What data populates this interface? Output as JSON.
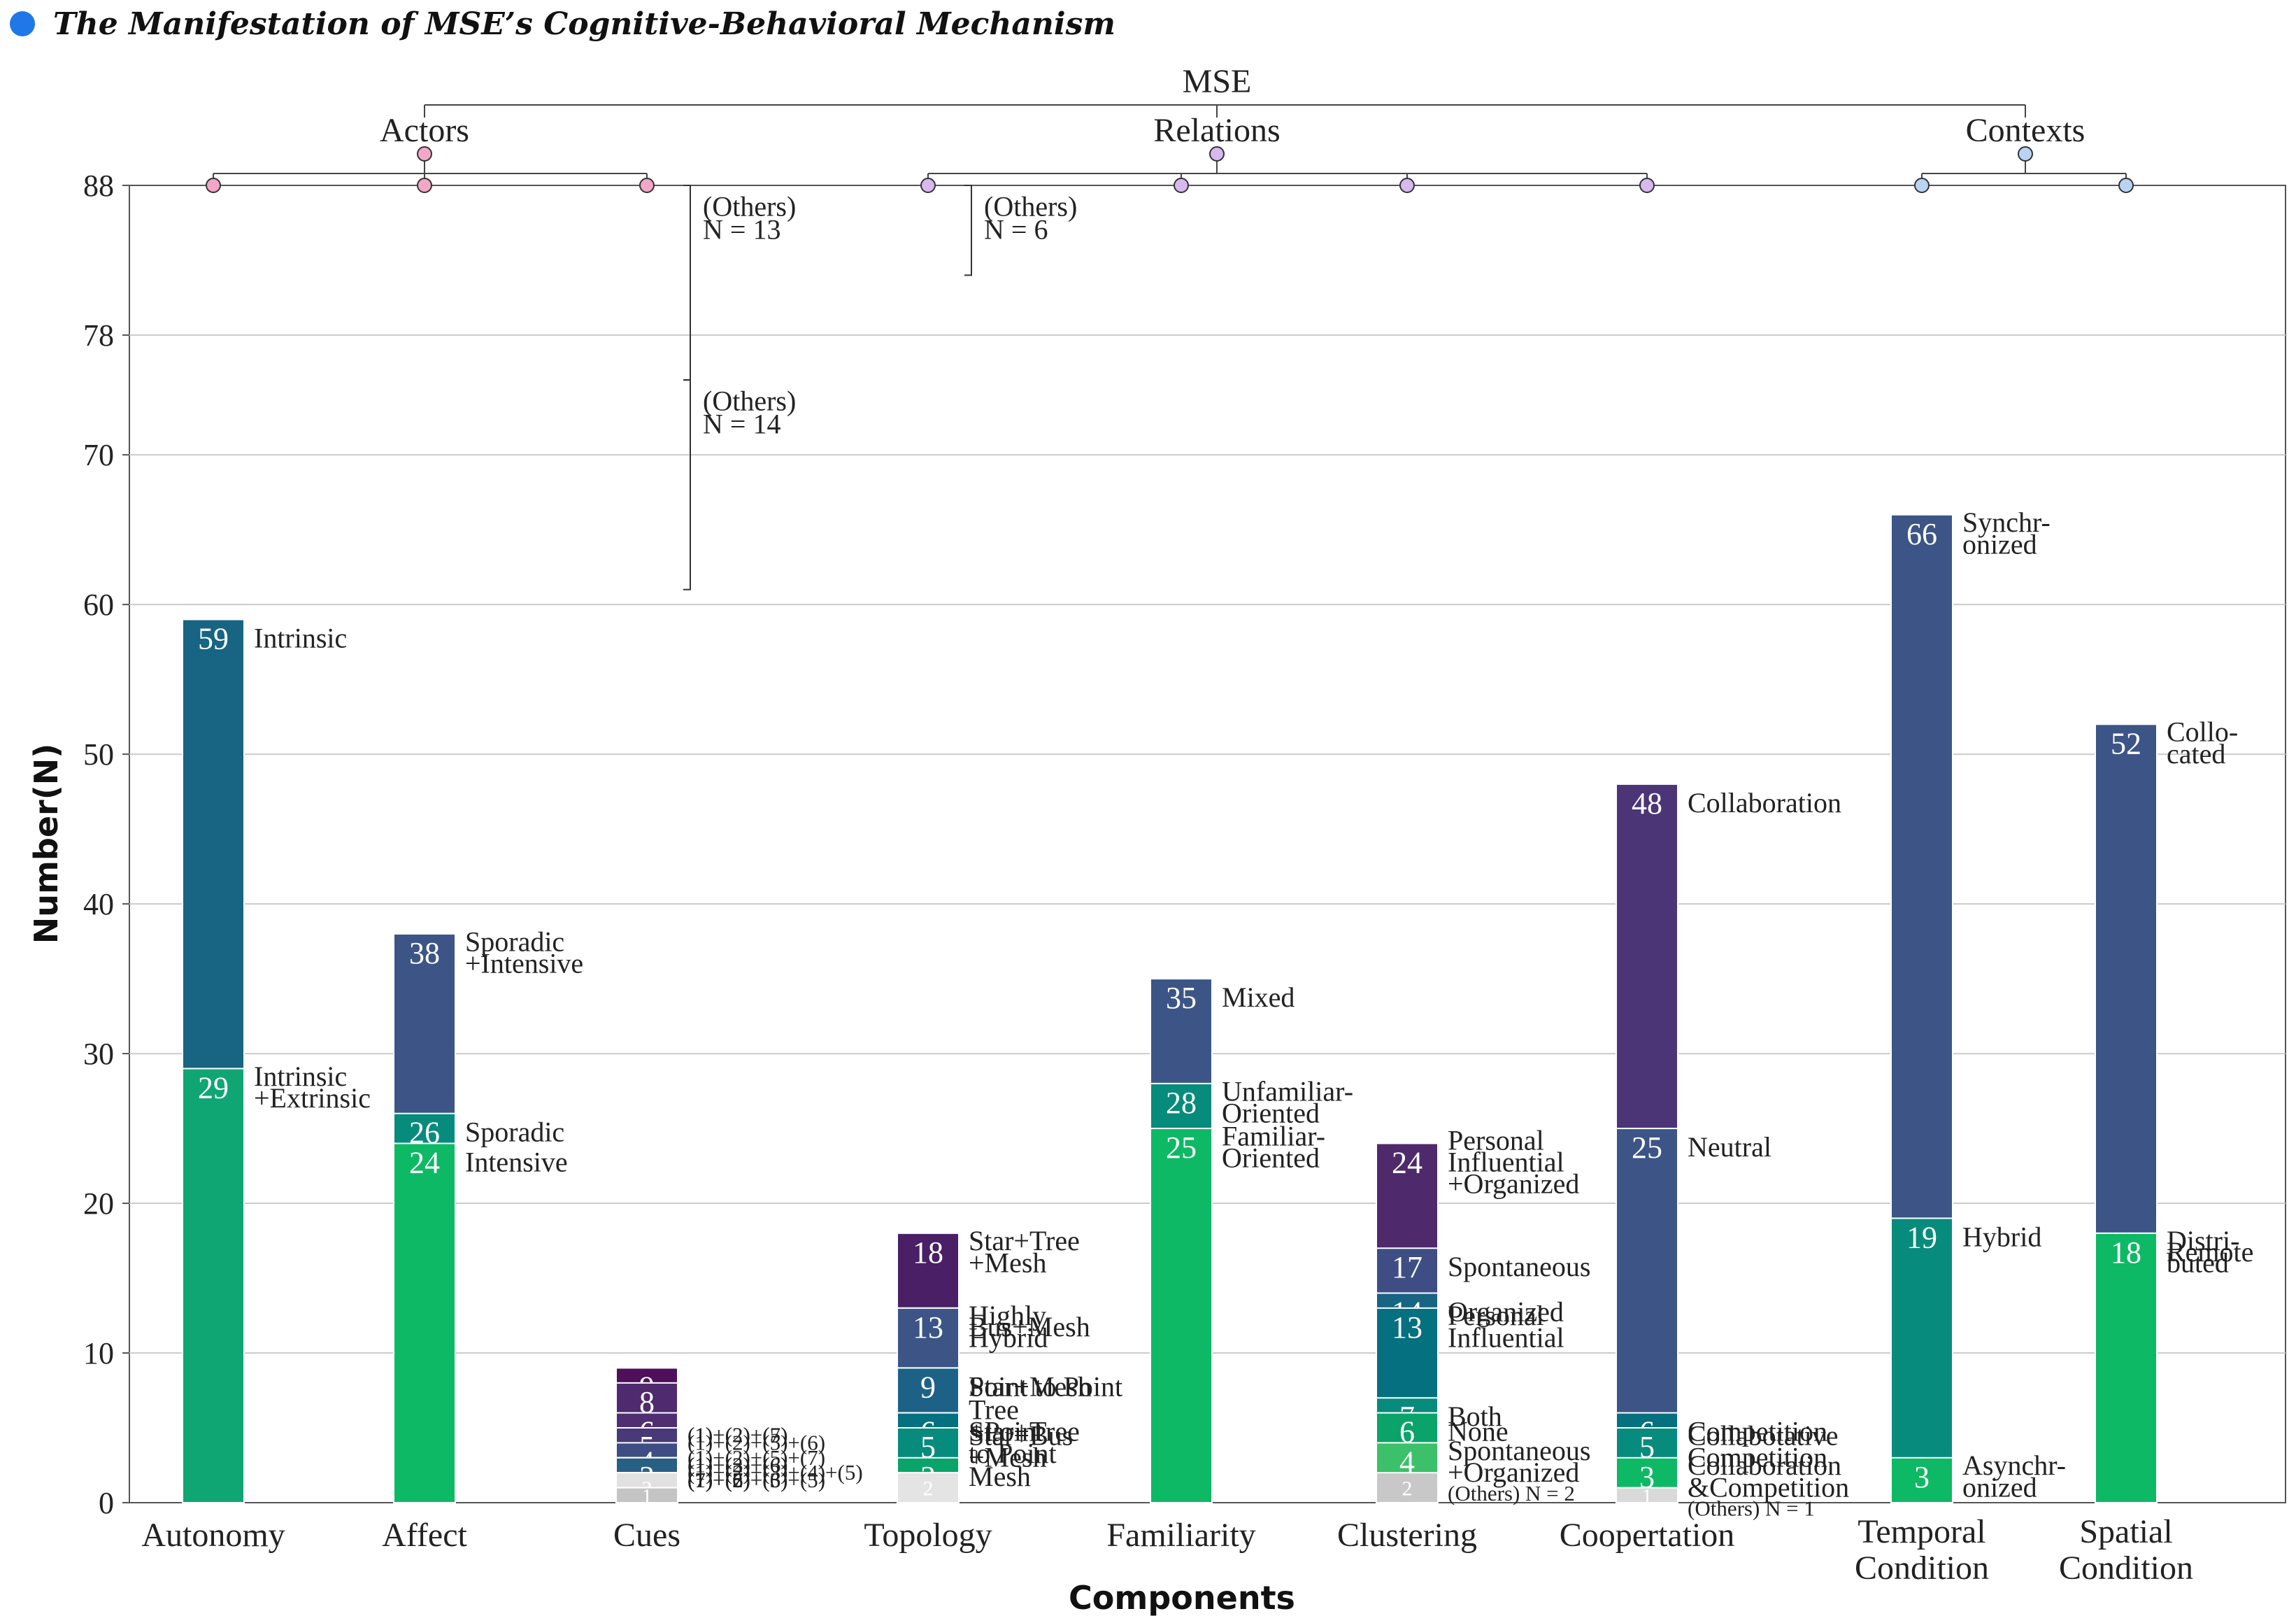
{
  "figure": {
    "title": "The Manifestation of MSE’s Cognitive-Behavioral Mechanism",
    "title_dot_color": "#1f77e8"
  },
  "hierarchy": {
    "root": "MSE",
    "groups": [
      {
        "name": "Actors",
        "dot_color": "#f2a7c6",
        "bars": [
          "Autonomy",
          "Affect",
          "Cues"
        ]
      },
      {
        "name": "Relations",
        "dot_color": "#d7b8ef",
        "bars": [
          "Topology",
          "Familiarity",
          "Clustering",
          "Coopertation"
        ]
      },
      {
        "name": "Contexts",
        "dot_color": "#b9d4f2",
        "bars": [
          "Temporal Condition",
          "Spatial Condition"
        ]
      }
    ]
  },
  "chart_data": {
    "type": "bar",
    "subtype": "stacked",
    "title": "The Manifestation of MSE’s Cognitive-Behavioral Mechanism",
    "xlabel": "Components",
    "ylabel": "Number(N)",
    "ylim": [
      0,
      88
    ],
    "yticks": [
      0,
      10,
      20,
      30,
      40,
      50,
      60,
      70,
      78,
      88
    ],
    "grid": true,
    "categories": [
      "Autonomy",
      "Affect",
      "Cues",
      "Topology",
      "Familiarity",
      "Clustering",
      "Coopertation",
      "Temporal Condition",
      "Spatial Condition"
    ],
    "bars": [
      {
        "category": "Autonomy",
        "segments": [
          {
            "value": 59,
            "label": "Intrinsic",
            "color": "#176483"
          },
          {
            "value": 29,
            "label": "Intrinsic\n+Extrinsic",
            "color": "#0fa673"
          }
        ]
      },
      {
        "category": "Affect",
        "segments": [
          {
            "value": 38,
            "label": "Sporadic\n+Intensive",
            "color": "#3c5586"
          },
          {
            "value": 26,
            "label": "Sporadic",
            "color": "#078b7c"
          },
          {
            "value": 24,
            "label": "Intensive",
            "color": "#0db965"
          }
        ]
      },
      {
        "category": "Cues",
        "segments": [
          {
            "value": 9,
            "label": "(1)+(2)+(5)",
            "color": "#4f0f5a"
          },
          {
            "value": 9,
            "label": "(1)+(2)+(7)",
            "color": "#4f0f5a"
          },
          {
            "value": 8,
            "label": "(1)+(2)+(5)+(6)",
            "color": "#4f2a6f"
          },
          {
            "value": 6,
            "label": "(1)+(2)+(5)+(7)",
            "color": "#4f2f72"
          },
          {
            "value": 5,
            "label": "(1)+(3)+(6)",
            "color": "#483979"
          },
          {
            "value": 5,
            "label": "(1)+(2)+(6)",
            "color": "#483979"
          },
          {
            "value": 4,
            "label": "(1)+(2)+(3)+(4)+(5)",
            "color": "#3e4d84"
          },
          {
            "value": 3,
            "label": "(1)+(5)+(6)",
            "color": "#3c5586"
          },
          {
            "value": 3,
            "label": "(1)+(7)",
            "color": "#285f85"
          },
          {
            "value": 3,
            "label": "(1)+(2)+(3)+(5)",
            "color": "#285f85"
          },
          {
            "value": 3,
            "label": "(1)+(6)",
            "color": "#285f85"
          },
          {
            "value": 3,
            "label": "(7)",
            "color": "#285f85"
          },
          {
            "value": 2,
            "label": "",
            "color": "#e1e1e1"
          },
          {
            "value": 2,
            "label": "",
            "color": "#c4c4c4"
          },
          {
            "value": 2,
            "label": "",
            "color": "#e1e1e1"
          },
          {
            "value": 2,
            "label": "",
            "color": "#c4c4c4"
          },
          {
            "value": 2,
            "label": "",
            "color": "#e1e1e1"
          },
          {
            "value": 2,
            "label": "",
            "color": "#c4c4c4"
          },
          {
            "value": 2,
            "label": "",
            "color": "#e1e1e1"
          },
          {
            "value": 1,
            "label": "",
            "color": "#c4c4c4"
          },
          {
            "value": 1,
            "label": "",
            "color": "#e1e1e1"
          },
          {
            "value": 1,
            "label": "",
            "color": "#c4c4c4"
          },
          {
            "value": 1,
            "label": "",
            "color": "#e1e1e1"
          },
          {
            "value": 1,
            "label": "",
            "color": "#c4c4c4"
          },
          {
            "value": 1,
            "label": "",
            "color": "#e1e1e1"
          },
          {
            "value": 1,
            "label": "",
            "color": "#c4c4c4"
          },
          {
            "value": 1,
            "label": "",
            "color": "#e1e1e1"
          },
          {
            "value": 1,
            "label": "",
            "color": "#c4c4c4"
          },
          {
            "value": 1,
            "label": "",
            "color": "#e1e1e1"
          },
          {
            "value": 1,
            "label": "",
            "color": "#c4c4c4"
          },
          {
            "value": 1,
            "label": "",
            "color": "#e1e1e1"
          },
          {
            "value": 1,
            "label": "",
            "color": "#c4c4c4"
          }
        ]
      },
      {
        "category": "Topology",
        "segments": [
          {
            "value": 18,
            "label": "Star+Tree\n+Mesh",
            "color": "#4a1f66"
          },
          {
            "value": 13,
            "label": "Highly\nHybrid",
            "color": "#4a3477"
          },
          {
            "value": 13,
            "label": "Bus+Mesh",
            "color": "#3c5586"
          },
          {
            "value": 9,
            "label": "Star+Mesh",
            "color": "#1e6187"
          },
          {
            "value": 9,
            "label": "Point to Point",
            "color": "#1e6187"
          },
          {
            "value": 6,
            "label": "Tree\n+Point\nto Point",
            "color": "#05707f"
          },
          {
            "value": 6,
            "label": "Star+Tree",
            "color": "#05707f"
          },
          {
            "value": 5,
            "label": "Star+Bus\n+Mesh",
            "color": "#078b7c"
          },
          {
            "value": 3,
            "label": "Mesh",
            "color": "#0aa46a"
          },
          {
            "value": 2,
            "label": "",
            "color": "#e4e4e4"
          },
          {
            "value": 2,
            "label": "",
            "color": "#c9c9c9"
          },
          {
            "value": 2,
            "label": "",
            "color": "#e4e4e4"
          }
        ]
      },
      {
        "category": "Familiarity",
        "segments": [
          {
            "value": 35,
            "label": "Mixed",
            "color": "#3c5586"
          },
          {
            "value": 28,
            "label": "Unfamiliar-\nOriented",
            "color": "#078b7c"
          },
          {
            "value": 25,
            "label": "Familiar-\nOriented",
            "color": "#0db965"
          }
        ]
      },
      {
        "category": "Clustering",
        "segments": [
          {
            "value": 24,
            "label": "Personal\nInfluential\n+Organized",
            "color": "#4e2a6c"
          },
          {
            "value": 17,
            "label": "Spontaneous",
            "color": "#3e4e85"
          },
          {
            "value": 14,
            "label": "Organized",
            "color": "#176483"
          },
          {
            "value": 13,
            "label": "Personal\nInfluential",
            "color": "#05707f"
          },
          {
            "value": 7,
            "label": "Both",
            "color": "#078b7c"
          },
          {
            "value": 6,
            "label": "None",
            "color": "#0aa46a"
          },
          {
            "value": 4,
            "label": "Spontaneous\n+Organized",
            "color": "#3dc06a"
          },
          {
            "value": 2,
            "label": "(Others) N = 2",
            "color": "#c8c8c8"
          }
        ]
      },
      {
        "category": "Coopertation",
        "segments": [
          {
            "value": 48,
            "label": "Collaboration",
            "color": "#4b3577"
          },
          {
            "value": 25,
            "label": "Neutral",
            "color": "#3c5586"
          },
          {
            "value": 6,
            "label": "Competition",
            "color": "#05707f"
          },
          {
            "value": 5,
            "label": "Collabotative\nCompetition",
            "color": "#078b7c"
          },
          {
            "value": 3,
            "label": "Collaboration\n&Competition",
            "color": "#0db965"
          },
          {
            "value": 1,
            "label": "(Others) N = 1",
            "color": "#d9d9d9"
          }
        ]
      },
      {
        "category": "Temporal Condition",
        "segments": [
          {
            "value": 66,
            "label": "Synchr-\nonized",
            "color": "#3c5586"
          },
          {
            "value": 19,
            "label": "Hybrid",
            "color": "#078b7c"
          },
          {
            "value": 3,
            "label": "Asynchr-\nonized",
            "color": "#0db965"
          }
        ]
      },
      {
        "category": "Spatial Condition",
        "segments": [
          {
            "value": 52,
            "label": "Collo-\ncated",
            "color": "#3c5586"
          },
          {
            "value": 18,
            "label": "Remote",
            "color": "#078b7c"
          },
          {
            "value": 18,
            "label": "Distri-\nbuted",
            "color": "#0db965"
          }
        ]
      }
    ],
    "others_groups": [
      {
        "category": "Cues",
        "label": "(Others)\nN = 13"
      },
      {
        "category": "Cues",
        "label": "(Others)\nN = 14"
      },
      {
        "category": "Topology",
        "label": "(Others)\nN = 6"
      }
    ]
  }
}
